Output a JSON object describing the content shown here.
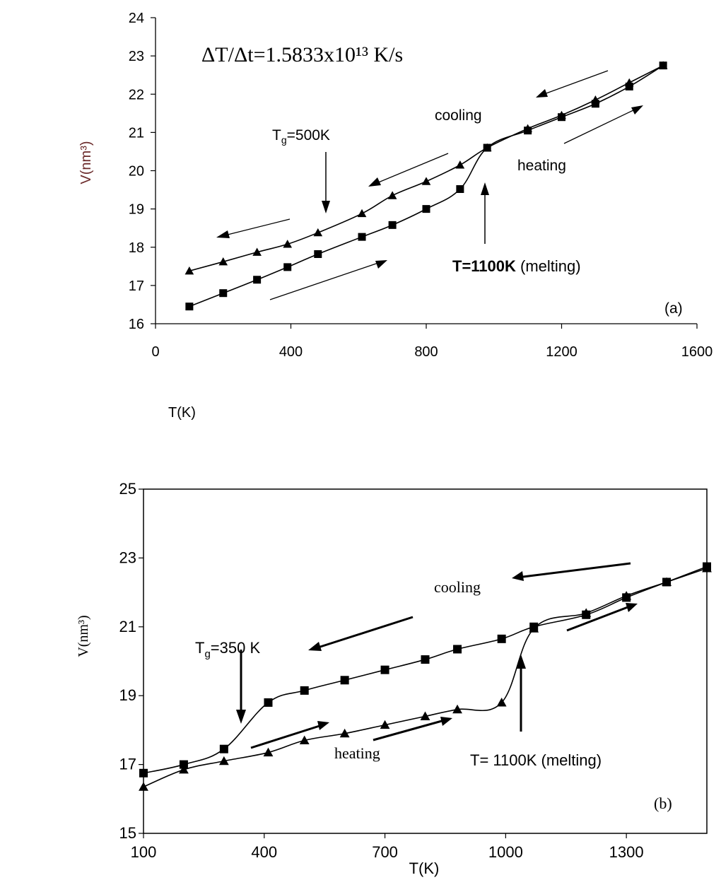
{
  "chart_data": [
    {
      "panel": "a",
      "type": "line",
      "xlim": [
        0,
        1600
      ],
      "ylim": [
        16,
        24
      ],
      "xticks": [
        0,
        400,
        800,
        1200,
        1600
      ],
      "yticks": [
        16,
        17,
        18,
        19,
        20,
        21,
        22,
        23,
        24
      ],
      "xlabel": "T(K)",
      "ylabel": "V(nm³)",
      "grid": false,
      "annotations": {
        "rate": "ΔT/Δt=1.5833x10¹³ K/s",
        "tg_main": "T",
        "tg_sub": "g",
        "tg_rest": "=500K",
        "cooling": "cooling",
        "heating": "heating",
        "melt_bold": "T=1100K",
        "melt_rest": " (melting)",
        "panel_label": "(a)"
      },
      "series": [
        {
          "marker": "triangle",
          "x": [
            100,
            200,
            300,
            390,
            480,
            610,
            700,
            800,
            900,
            980,
            1100,
            1200,
            1300,
            1400,
            1500
          ],
          "y": [
            17.38,
            17.62,
            17.87,
            18.08,
            18.38,
            18.88,
            19.35,
            19.72,
            20.15,
            20.6,
            21.1,
            21.45,
            21.85,
            22.3,
            22.75
          ]
        },
        {
          "marker": "square",
          "x": [
            100,
            200,
            300,
            390,
            480,
            610,
            700,
            800,
            900,
            980,
            1100,
            1200,
            1300,
            1400,
            1500
          ],
          "y": [
            16.45,
            16.8,
            17.15,
            17.48,
            17.82,
            18.27,
            18.58,
            19.0,
            19.52,
            20.6,
            21.05,
            21.4,
            21.75,
            22.2,
            22.75
          ]
        }
      ]
    },
    {
      "panel": "b",
      "type": "line",
      "xlim": [
        100,
        1500
      ],
      "ylim": [
        15,
        25
      ],
      "xticks": [
        100,
        400,
        700,
        1000,
        1300
      ],
      "yticks": [
        15,
        17,
        19,
        21,
        23,
        25
      ],
      "xlabel": "T(K)",
      "ylabel": "V(nm³)",
      "grid": false,
      "annotations": {
        "tg_main": "T",
        "tg_sub": "g",
        "tg_rest": "=350 K",
        "cooling": "cooling",
        "heating": "heating",
        "melting": "T= 1100K (melting)",
        "panel_label": "(b)"
      },
      "series": [
        {
          "marker": "square",
          "x": [
            100,
            200,
            300,
            410,
            500,
            600,
            700,
            800,
            880,
            990,
            1070,
            1200,
            1300,
            1400,
            1500
          ],
          "y": [
            16.75,
            17.0,
            17.45,
            18.8,
            19.15,
            19.45,
            19.75,
            20.05,
            20.35,
            20.65,
            21.0,
            21.35,
            21.85,
            22.3,
            22.75
          ]
        },
        {
          "marker": "triangle",
          "x": [
            100,
            200,
            300,
            410,
            500,
            600,
            700,
            800,
            880,
            990,
            1070,
            1200,
            1300,
            1400,
            1500
          ],
          "y": [
            16.35,
            16.85,
            17.1,
            17.35,
            17.7,
            17.9,
            18.15,
            18.4,
            18.6,
            18.8,
            20.95,
            21.4,
            21.9,
            22.3,
            22.7
          ]
        }
      ]
    }
  ]
}
